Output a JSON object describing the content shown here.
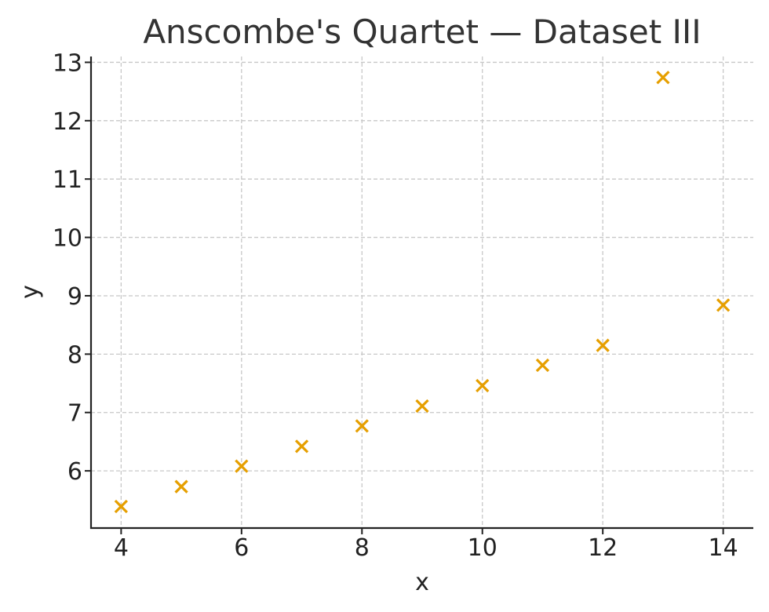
{
  "chart_data": {
    "type": "scatter",
    "title": "Anscombe's Quartet — Dataset III",
    "xlabel": "x",
    "ylabel": "y",
    "xlim": [
      3.5,
      14.5
    ],
    "ylim": [
      5.02,
      13.1
    ],
    "xticks": [
      4,
      6,
      8,
      10,
      12,
      14
    ],
    "yticks": [
      6,
      7,
      8,
      9,
      10,
      11,
      12,
      13
    ],
    "grid": true,
    "marker": "x",
    "color": "#E69F00",
    "series": [
      {
        "x": [
          4,
          5,
          6,
          7,
          8,
          9,
          10,
          11,
          12,
          13,
          14
        ],
        "y": [
          5.39,
          5.73,
          6.08,
          6.42,
          6.77,
          7.11,
          7.46,
          7.81,
          8.15,
          12.74,
          8.84
        ]
      }
    ]
  }
}
